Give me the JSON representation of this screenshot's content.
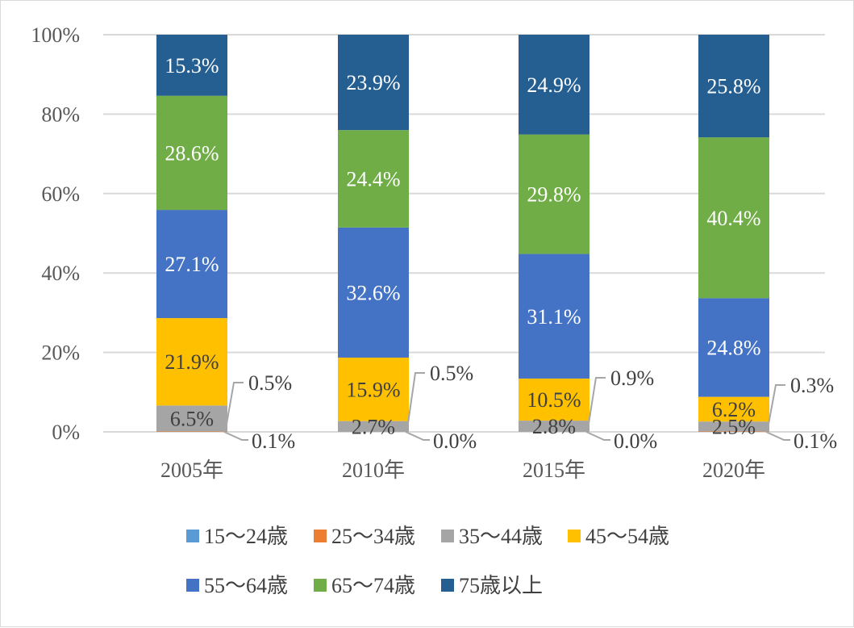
{
  "chart_data": {
    "type": "bar",
    "stacked": true,
    "percent": true,
    "categories": [
      "2005年",
      "2010年",
      "2015年",
      "2020年"
    ],
    "yticks": [
      "0%",
      "20%",
      "40%",
      "60%",
      "80%",
      "100%"
    ],
    "ylim": [
      0,
      100
    ],
    "grid": true,
    "legend_position": "bottom",
    "series": [
      {
        "name": "15～24歳",
        "color": "#5B9BD5",
        "values": [
          0.0,
          0.0,
          0.0,
          0.0
        ],
        "labels": [
          "",
          "",
          "",
          ""
        ]
      },
      {
        "name": "25～34歳",
        "color": "#ED7D31",
        "values": [
          0.1,
          0.0,
          0.0,
          0.1
        ],
        "labels": [
          "0.1%",
          "0.0%",
          "0.0%",
          "0.1%"
        ]
      },
      {
        "name": "35～44歳",
        "color": "#A5A5A5",
        "values": [
          6.5,
          2.7,
          2.8,
          2.5
        ],
        "labels": [
          "6.5%",
          "2.7%",
          "2.8%",
          "2.5%"
        ]
      },
      {
        "name": "45～54歳",
        "color": "#FFC000",
        "values": [
          21.9,
          15.9,
          10.5,
          6.2
        ],
        "labels": [
          "21.9%",
          "15.9%",
          "10.5%",
          "6.2%"
        ]
      },
      {
        "name": "55～64歳",
        "color": "#4472C4",
        "values": [
          27.1,
          32.6,
          31.1,
          24.8
        ],
        "labels": [
          "27.1%",
          "32.6%",
          "31.1%",
          "24.8%"
        ]
      },
      {
        "name": "65～74歳",
        "color": "#70AD47",
        "values": [
          28.6,
          24.4,
          29.8,
          40.4
        ],
        "labels": [
          "28.6%",
          "24.4%",
          "29.8%",
          "40.4%"
        ]
      },
      {
        "name": "75歳以上",
        "color": "#255E91",
        "values": [
          15.3,
          23.9,
          24.9,
          25.8
        ],
        "labels": [
          "15.3%",
          "23.9%",
          "24.9%",
          "25.8%"
        ]
      }
    ],
    "callouts": [
      {
        "category_index": 0,
        "value_label": "0.5%"
      },
      {
        "category_index": 1,
        "value_label": "0.5%"
      },
      {
        "category_index": 2,
        "value_label": "0.9%"
      },
      {
        "category_index": 3,
        "value_label": "0.3%"
      }
    ]
  }
}
